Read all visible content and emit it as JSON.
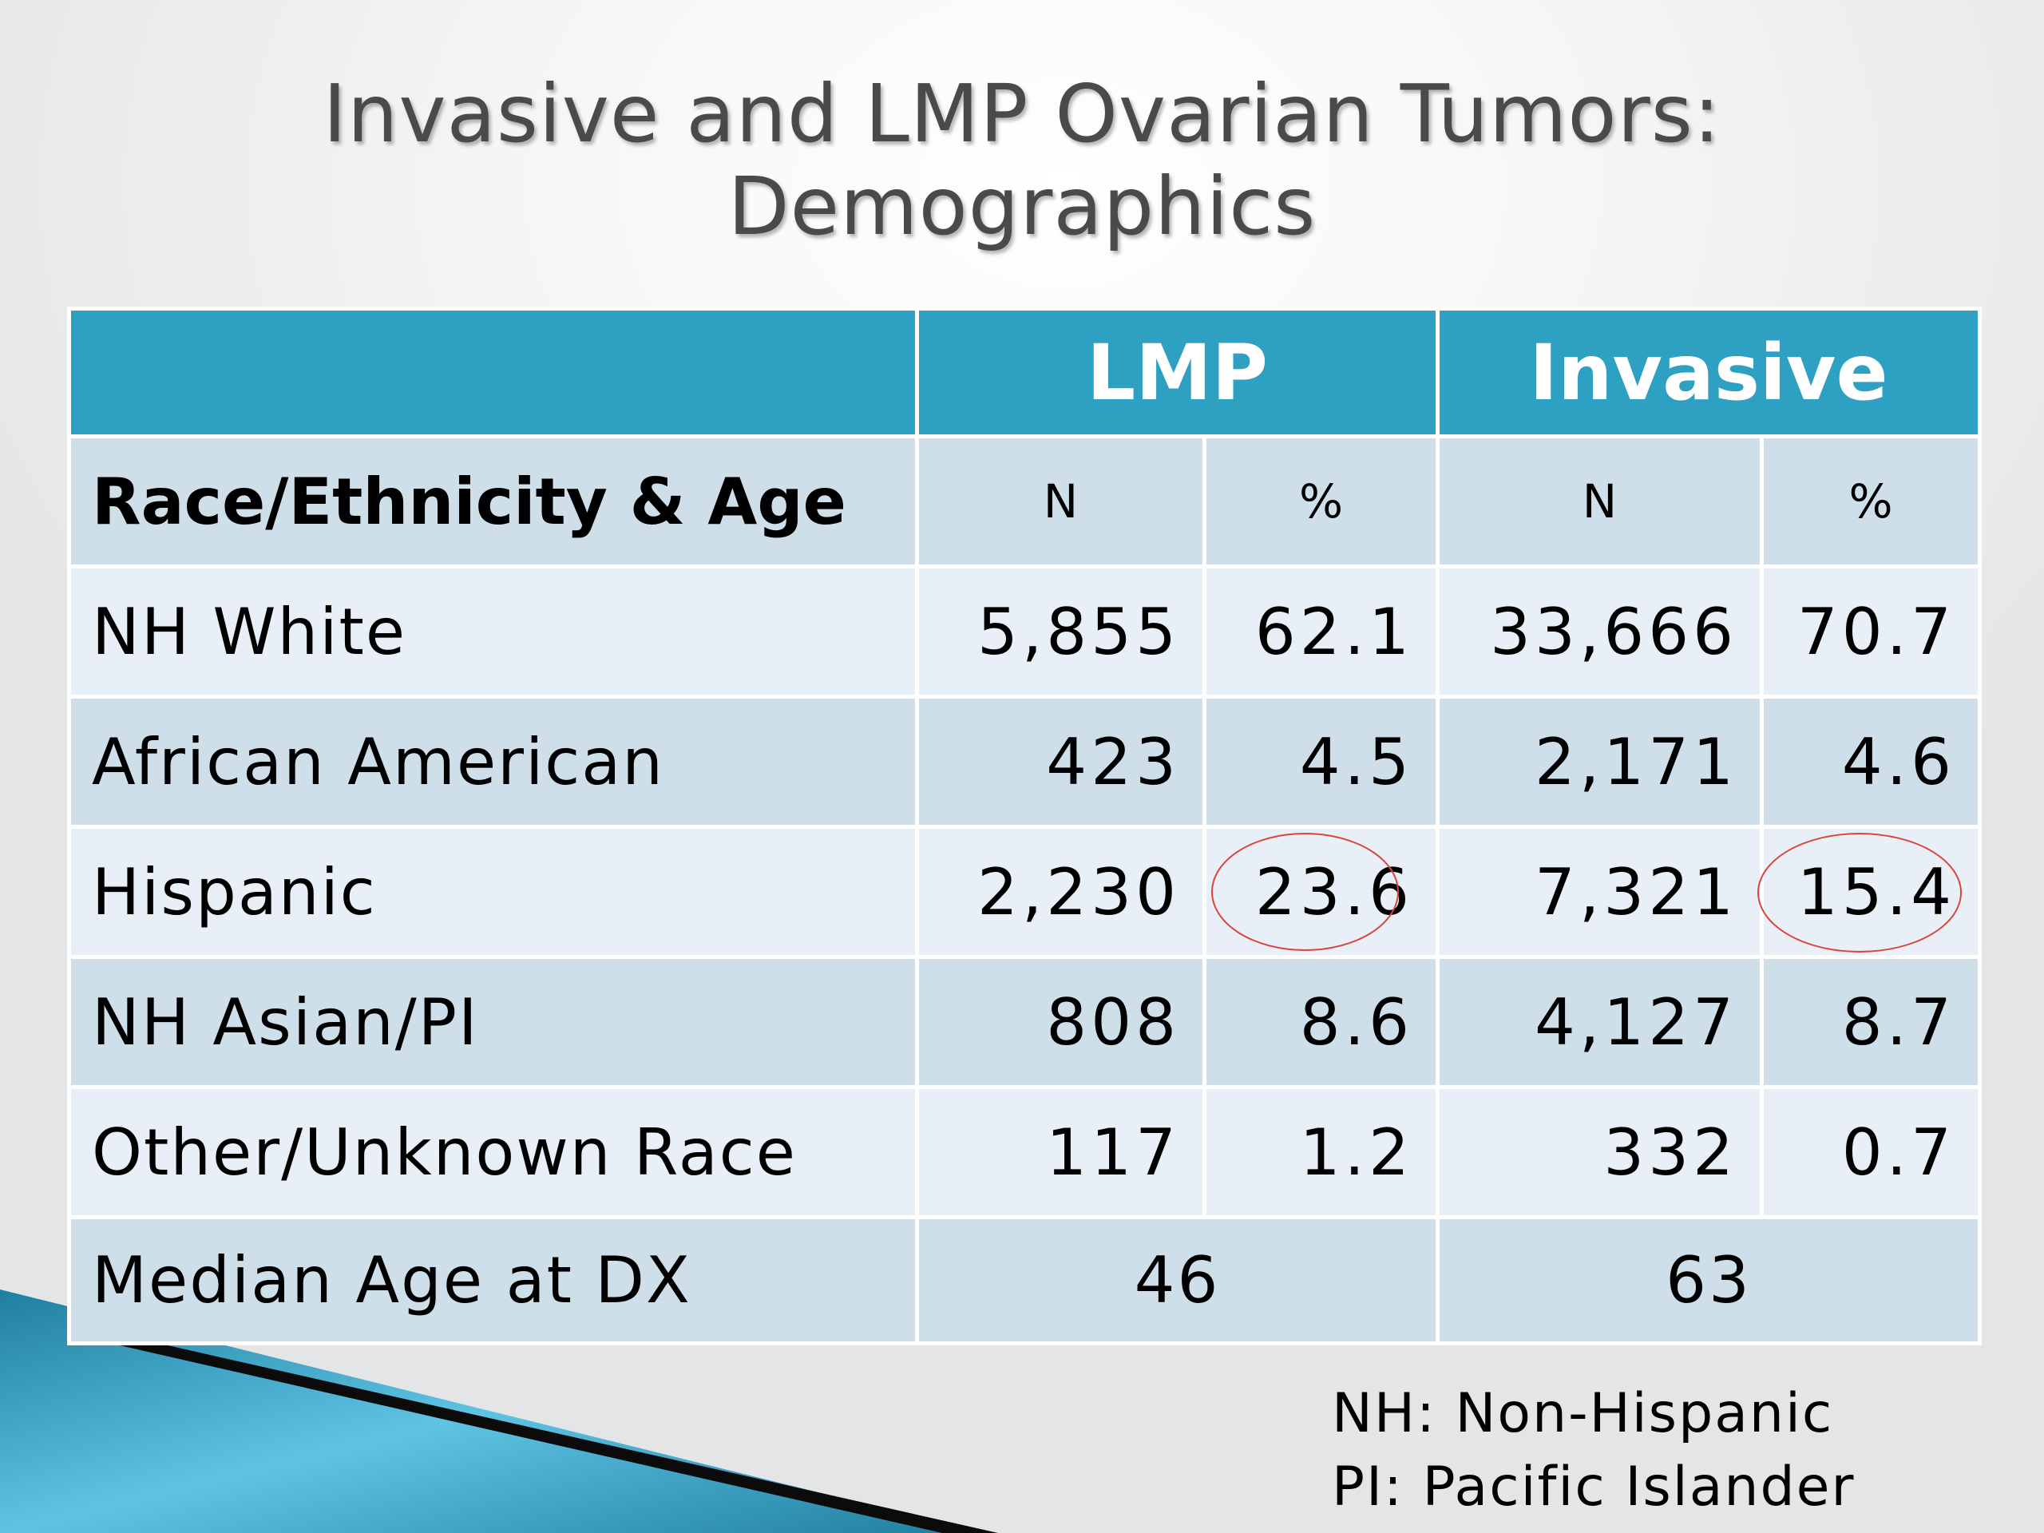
{
  "title": {
    "line1": "Invasive and LMP Ovarian Tumors:",
    "line2": "Demographics"
  },
  "table": {
    "groups": [
      "LMP",
      "Invasive"
    ],
    "row_header": "Race/Ethnicity & Age",
    "subheaders": [
      "N",
      "%",
      "N",
      "%"
    ],
    "rows": [
      {
        "label": "NH White",
        "lmp_n": "5,855",
        "lmp_pct": "62.1",
        "inv_n": "33,666",
        "inv_pct": "70.7"
      },
      {
        "label": "African American",
        "lmp_n": "423",
        "lmp_pct": "4.5",
        "inv_n": "2,171",
        "inv_pct": "4.6"
      },
      {
        "label": "Hispanic",
        "lmp_n": "2,230",
        "lmp_pct": "23.6",
        "inv_n": "7,321",
        "inv_pct": "15.4"
      },
      {
        "label": "NH Asian/PI",
        "lmp_n": "808",
        "lmp_pct": "8.6",
        "inv_n": "4,127",
        "inv_pct": "8.7"
      },
      {
        "label": "Other/Unknown Race",
        "lmp_n": "117",
        "lmp_pct": "1.2",
        "inv_n": "332",
        "inv_pct": "0.7"
      }
    ],
    "median_row": {
      "label": "Median Age at DX",
      "lmp": "46",
      "invasive": "63"
    },
    "highlight_color": "#d9453e",
    "header_color": "#2ea0c2"
  },
  "footnotes": [
    "NH: Non-Hispanic",
    "PI: Pacific Islander"
  ]
}
